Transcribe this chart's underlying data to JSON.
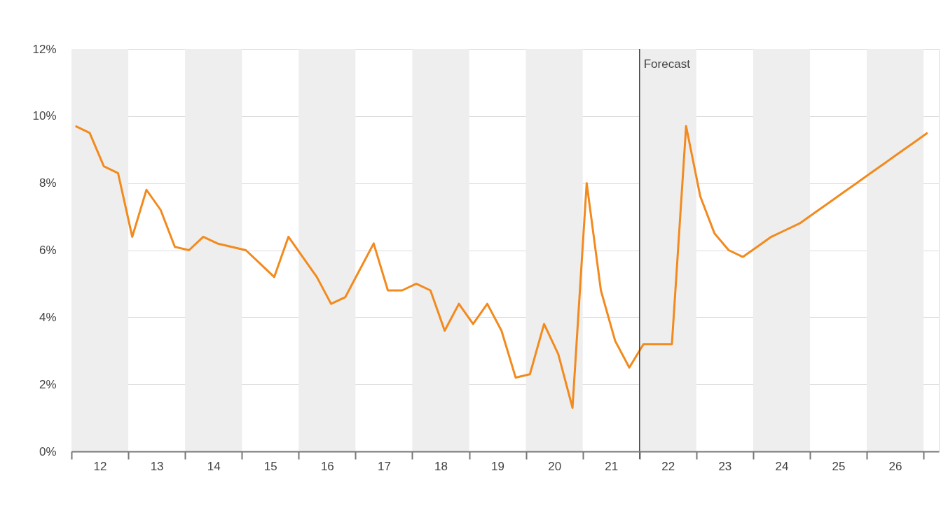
{
  "chart_data": {
    "type": "line",
    "x": [
      11.57,
      11.82,
      12.07,
      12.32,
      12.57,
      12.82,
      13.07,
      13.32,
      13.57,
      13.82,
      14.07,
      14.32,
      14.57,
      14.82,
      15.07,
      15.32,
      15.57,
      15.82,
      16.07,
      16.32,
      16.57,
      16.82,
      17.07,
      17.32,
      17.57,
      17.82,
      18.07,
      18.32,
      18.57,
      18.82,
      19.07,
      19.32,
      19.57,
      19.82,
      20.07,
      20.32,
      20.57,
      20.82,
      21.07,
      21.32,
      21.57,
      21.82,
      22.07,
      22.32,
      22.57,
      22.82,
      23.07,
      23.32,
      23.57,
      23.82,
      24.07,
      24.32,
      24.57,
      24.82,
      25.07,
      25.32,
      25.57,
      25.82,
      26.07,
      26.32,
      26.57
    ],
    "series": [
      {
        "color": "#f28a1e",
        "values": [
          9.7,
          9.5,
          8.5,
          8.3,
          6.4,
          7.8,
          7.2,
          6.1,
          6.0,
          6.4,
          6.2,
          6.1,
          6.0,
          5.6,
          5.2,
          6.4,
          5.8,
          5.2,
          4.4,
          4.6,
          5.4,
          6.2,
          4.8,
          4.8,
          5.0,
          4.8,
          3.6,
          4.4,
          3.8,
          4.4,
          3.6,
          2.2,
          2.3,
          3.8,
          2.9,
          1.3,
          8.0,
          4.8,
          3.3,
          2.5,
          3.2,
          3.2,
          3.2,
          9.7,
          7.6,
          6.5,
          6.0,
          5.8,
          6.1,
          6.4,
          6.6,
          6.8,
          7.1,
          7.4,
          7.7,
          8.0,
          8.3,
          8.6,
          8.9,
          9.2,
          9.5
        ]
      }
    ],
    "xlim": [
      11.5,
      26.77
    ],
    "xticks": [
      12,
      13,
      14,
      15,
      16,
      17,
      18,
      19,
      20,
      21,
      22,
      23,
      24,
      25,
      26,
      {
        "value": 11.5,
        "label": null
      },
      {
        "value": 12.5,
        "label": null
      },
      {
        "value": 13.5,
        "label": null
      },
      {
        "value": 14.5,
        "label": null
      },
      {
        "value": 15.5,
        "label": null
      },
      {
        "value": 16.5,
        "label": null
      },
      {
        "value": 17.5,
        "label": null
      },
      {
        "value": 18.5,
        "label": null
      },
      {
        "value": 19.5,
        "label": null
      },
      {
        "value": 20.5,
        "label": null
      },
      {
        "value": 21.5,
        "label": null
      },
      {
        "value": 22.5,
        "label": null
      },
      {
        "value": 23.5,
        "label": null
      },
      {
        "value": 24.5,
        "label": null
      },
      {
        "value": 25.5,
        "label": null
      },
      {
        "value": 26.5,
        "label": null
      }
    ],
    "ylim": [
      0,
      12
    ],
    "yticks": [
      {
        "value": 0,
        "label": "0%"
      },
      {
        "value": 2,
        "label": "2%"
      },
      {
        "value": 4,
        "label": "4%"
      },
      {
        "value": 6,
        "label": "6%"
      },
      {
        "value": 8,
        "label": "8%"
      },
      {
        "value": 10,
        "label": "10%"
      },
      {
        "value": 12,
        "label": "12%"
      }
    ],
    "grid": "y",
    "line_style": "solid",
    "ref_lines": [
      {
        "axis": "x",
        "value": 21.5,
        "label": "Forecast",
        "color": "#444444"
      }
    ],
    "bands": [
      {
        "axis": "x",
        "from": 11.5,
        "to": 12.5,
        "color": "#eeeeee"
      },
      {
        "axis": "x",
        "from": 13.5,
        "to": 14.5,
        "color": "#eeeeee"
      },
      {
        "axis": "x",
        "from": 15.5,
        "to": 16.5,
        "color": "#eeeeee"
      },
      {
        "axis": "x",
        "from": 17.5,
        "to": 18.5,
        "color": "#eeeeee"
      },
      {
        "axis": "x",
        "from": 19.5,
        "to": 20.5,
        "color": "#eeeeee"
      },
      {
        "axis": "x",
        "from": 21.5,
        "to": 22.5,
        "color": "#eeeeee"
      },
      {
        "axis": "x",
        "from": 23.5,
        "to": 24.5,
        "color": "#eeeeee"
      },
      {
        "axis": "x",
        "from": 25.5,
        "to": 26.5,
        "color": "#eeeeee"
      }
    ]
  }
}
